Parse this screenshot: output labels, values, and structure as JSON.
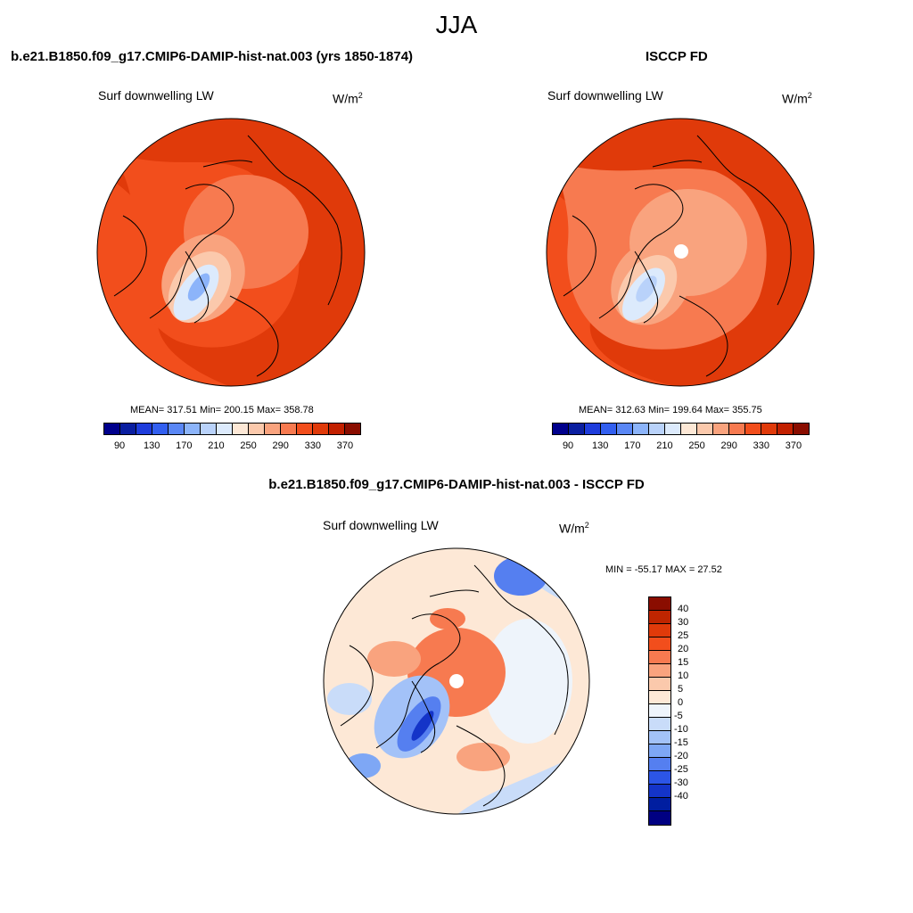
{
  "season": "JJA",
  "panels": {
    "model": {
      "title": "b.e21.B1850.f09_g17.CMIP6-DAMIP-hist-nat.003 (yrs 1850-1874)",
      "variable": "Surf downwelling LW",
      "units_base": "W/m",
      "units_sup": "2",
      "stats": "MEAN= 317.51  Min= 200.15  Max= 358.78"
    },
    "obs": {
      "title": "ISCCP FD",
      "variable": "Surf downwelling LW",
      "units_base": "W/m",
      "units_sup": "2",
      "stats": "MEAN= 312.63  Min= 199.64  Max= 355.75"
    },
    "diff": {
      "title": "b.e21.B1850.f09_g17.CMIP6-DAMIP-hist-nat.003 - ISCCP FD",
      "variable": "Surf downwelling LW",
      "units_base": "W/m",
      "units_sup": "2",
      "stats": "MIN = -55.17 MAX =  27.52"
    }
  },
  "abs_colorbar": {
    "colors": [
      "#00008c",
      "#0a1ea0",
      "#1e3cdc",
      "#325ff0",
      "#5a87f5",
      "#8cb4fa",
      "#b9d2fa",
      "#dceafc",
      "#fde8d6",
      "#fbc9ac",
      "#f9a37e",
      "#f77a50",
      "#f24e1c",
      "#e03a0a",
      "#c22000",
      "#8a0d00"
    ],
    "tick_labels": [
      "90",
      "130",
      "170",
      "210",
      "250",
      "290",
      "330",
      "370"
    ]
  },
  "diff_colorbar": {
    "colors": [
      "#8a0d00",
      "#bf2500",
      "#e03a0a",
      "#f24e1c",
      "#f77a50",
      "#f9a37e",
      "#fbc9ac",
      "#fde8d6",
      "#eef4fb",
      "#c9dcf9",
      "#a3c2f8",
      "#7ea7f5",
      "#557ff0",
      "#2c55e6",
      "#1434c8",
      "#001ea0",
      "#000082"
    ],
    "tick_labels": [
      "40",
      "30",
      "25",
      "20",
      "15",
      "10",
      "5",
      "0",
      "-5",
      "-10",
      "-15",
      "-20",
      "-25",
      "-30",
      "-40"
    ]
  }
}
